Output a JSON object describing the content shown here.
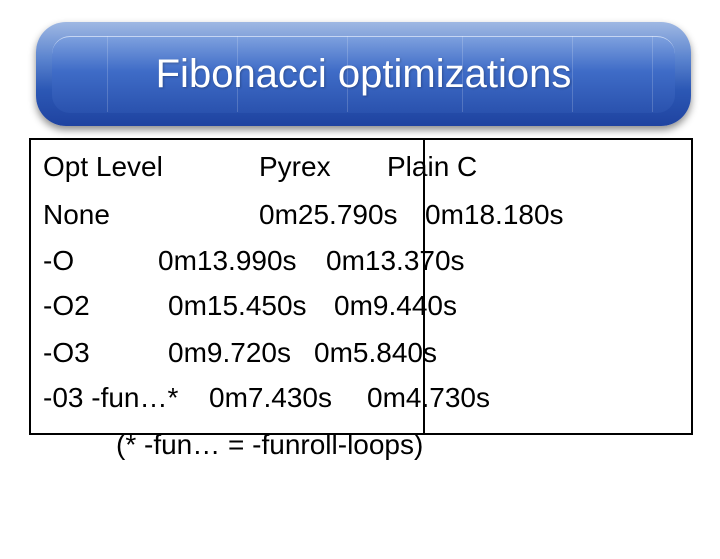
{
  "slide": {
    "title": "Fibonacci optimizations"
  },
  "table": {
    "header": {
      "opt_level": "Opt Level",
      "pyrex": "Pyrex",
      "plain_c": "Plain C"
    },
    "rows": [
      {
        "opt_level": "None",
        "pyrex": "0m25.790s",
        "plain_c": "0m18.180s"
      },
      {
        "opt_level": "-O",
        "pyrex": "0m13.990s",
        "plain_c": "0m13.370s"
      },
      {
        "opt_level": "-O2",
        "pyrex": "0m15.450s",
        "plain_c": "0m9.440s"
      },
      {
        "opt_level": "-O3",
        "pyrex": "0m9.720s",
        "plain_c": "0m5.840s"
      },
      {
        "opt_level": "-03 -fun…*",
        "pyrex": "0m7.430s",
        "plain_c": "0m4.730s"
      }
    ],
    "footnote": "(* -fun… = -funroll-loops)"
  }
}
